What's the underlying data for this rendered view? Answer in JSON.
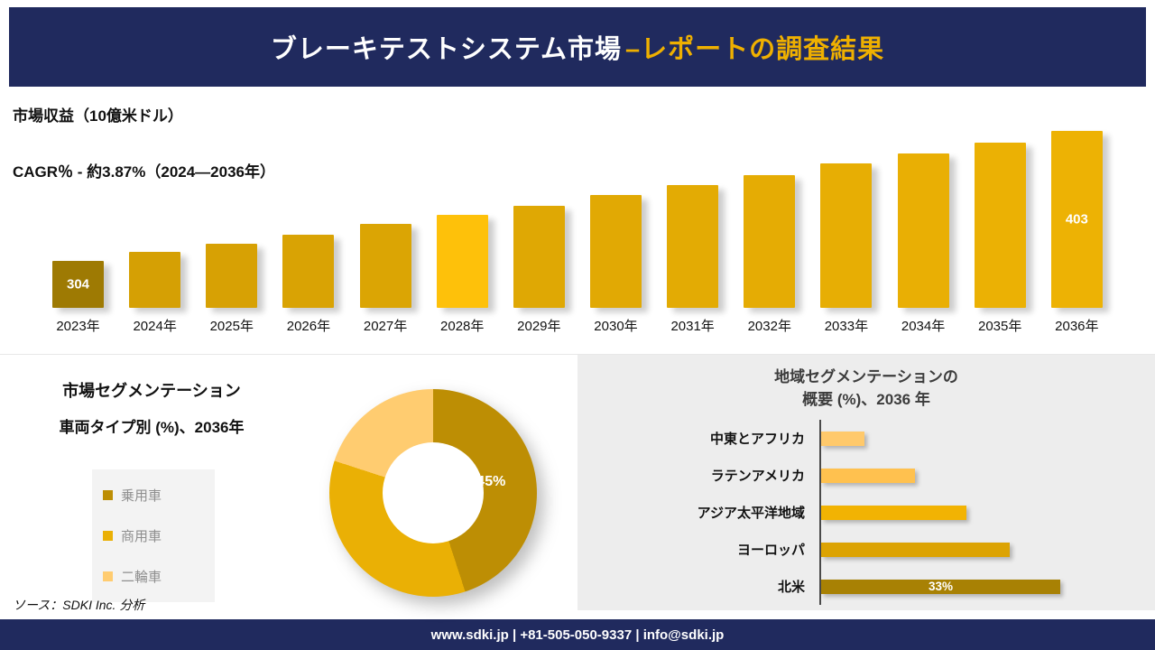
{
  "header": {
    "title_main": "ブレーキテストシステム市場",
    "title_accent": "–レポートの調査結果"
  },
  "colors": {
    "navy": "#202a5e",
    "accent_gold": "#efb000"
  },
  "chart_data": [
    {
      "id": "market_revenue_by_year",
      "type": "bar",
      "title": "市場収益（10億米ドル）",
      "subtitle": "CAGR％ - 約3.87%（2024―2036年）",
      "categories": [
        "2023年",
        "2024年",
        "2025年",
        "2026年",
        "2027年",
        "2028年",
        "2029年",
        "2030年",
        "2031年",
        "2032年",
        "2033年",
        "2034年",
        "2035年",
        "2036年"
      ],
      "values": [
        304,
        311,
        317,
        324,
        332,
        339,
        346,
        354,
        362,
        369,
        378,
        386,
        394,
        403
      ],
      "labeled_values": {
        "0": "304",
        "13": "403"
      },
      "colors": [
        "#9e7a03",
        "#d5a004",
        "#d7a104",
        "#d9a304",
        "#dba504",
        "#fec10a",
        "#dfa804",
        "#e1a904",
        "#e3ab04",
        "#e5ac04",
        "#e7ae04",
        "#e9af04",
        "#ebb104",
        "#edb204"
      ],
      "ylabel": "10億米ドル",
      "ylim": [
        290,
        410
      ],
      "grid": false,
      "legend": "none"
    },
    {
      "id": "vehicle_type_share_2036",
      "type": "pie",
      "title": "市場セグメンテーション",
      "subtitle": "車両タイプ別 (%)、2036年",
      "labels": [
        "乗用車",
        "商用車",
        "二輪車"
      ],
      "values": [
        45,
        35,
        20
      ],
      "colors": [
        "#bd8e04",
        "#eab005",
        "#ffcc70"
      ],
      "center_label": "45%",
      "legend": "left"
    },
    {
      "id": "region_share_2036",
      "type": "bar-horizontal",
      "title_line1": "地域セグメンテーションの",
      "title_line2": "概要 (%)、2036 年",
      "categories": [
        "中東とアフリカ",
        "ラテンアメリカ",
        "アジア太平洋地域",
        "ヨーロッパ",
        "北米"
      ],
      "values": [
        6,
        13,
        20,
        26,
        33
      ],
      "colors": [
        "#ffc96b",
        "#ffc14f",
        "#f2b303",
        "#dca303",
        "#a88104"
      ],
      "value_labels": {
        "4": "33%"
      },
      "grid": false,
      "legend": "none"
    }
  ],
  "source_note": "ソース：SDKI Inc. 分析",
  "footer": {
    "text": "www.sdki.jp | +81-505-050-9337 | info@sdki.jp"
  }
}
